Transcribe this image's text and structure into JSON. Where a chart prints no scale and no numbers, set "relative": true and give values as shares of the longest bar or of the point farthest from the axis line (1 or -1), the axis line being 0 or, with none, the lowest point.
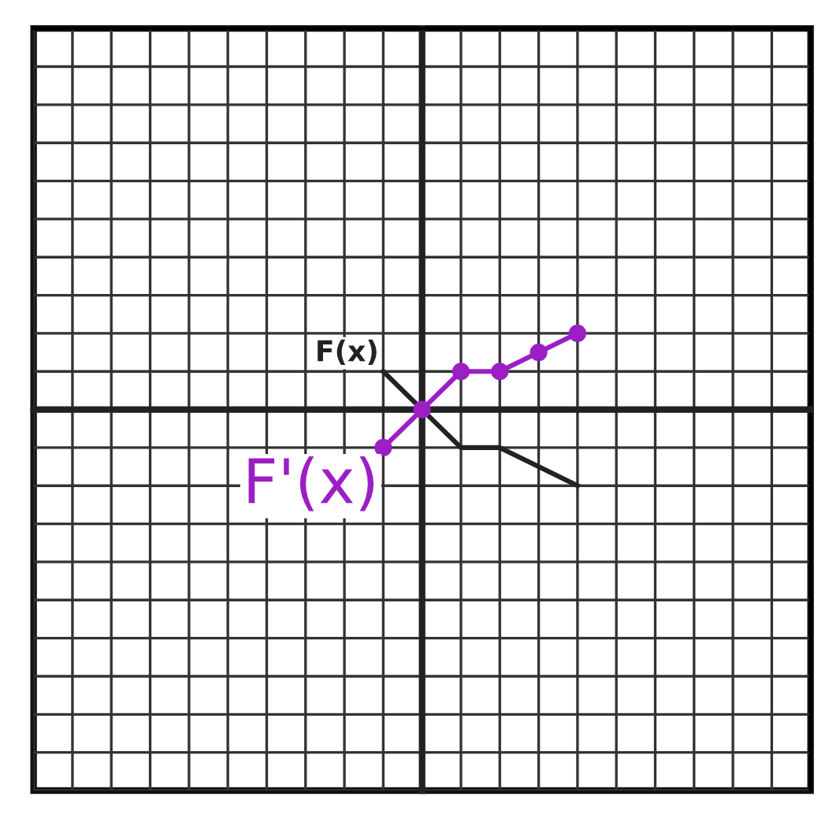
{
  "chart_data": {
    "type": "line",
    "relative": true,
    "grid": true,
    "categories": [
      null,
      null,
      null,
      null,
      null,
      null,
      null,
      null,
      null,
      null,
      null,
      null,
      null,
      null,
      null,
      null,
      null,
      null,
      null,
      null,
      null
    ],
    "series": [
      {
        "color": "#222222",
        "marker": "none",
        "values": [
          null,
          null,
          null,
          null,
          null,
          null,
          null,
          null,
          null,
          0.5,
          0,
          -0.5,
          -0.5,
          -0.75,
          -1,
          null,
          null,
          null,
          null,
          null,
          null
        ]
      },
      {
        "color": "#9b1fc4",
        "marker": "circle",
        "values": [
          null,
          null,
          null,
          null,
          null,
          null,
          null,
          null,
          null,
          -0.5,
          0,
          0.5,
          0.5,
          0.75,
          1,
          null,
          null,
          null,
          null,
          null,
          null
        ]
      }
    ],
    "annotations": [
      "F(x)",
      "F'(x)"
    ]
  }
}
